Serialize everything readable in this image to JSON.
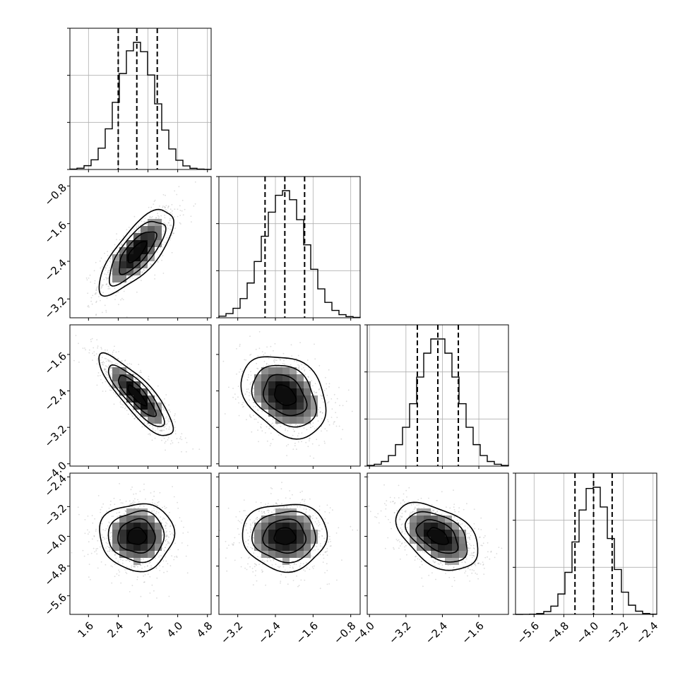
{
  "chart_data": {
    "type": "corner",
    "n_params": 4,
    "grid": true,
    "quantiles": [
      0.16,
      0.5,
      0.84
    ],
    "colors": {
      "hist": "#000000",
      "contour": "#000000",
      "points": "#9a9a9a",
      "grid": "#b0b0b0",
      "quantile_line": "#000000"
    },
    "parameters": [
      {
        "label": "",
        "range": [
          1.1,
          4.9
        ],
        "mean": 2.9,
        "sd": 0.5,
        "q16": 2.4,
        "q50": 2.9,
        "q84": 3.45,
        "yticks": [],
        "xticks": [
          "1.6",
          "2.4",
          "3.2",
          "4.0",
          "4.8"
        ]
      },
      {
        "label": "",
        "range": [
          -3.6,
          -0.6
        ],
        "mean": -2.2,
        "sd": 0.45,
        "q16": -2.62,
        "q50": -2.2,
        "q84": -1.78,
        "yticks": [
          "-0.8",
          "-1.6",
          "-2.4",
          "-3.2"
        ],
        "xticks": [
          "-3.2",
          "-2.4",
          "-1.6",
          "-0.8"
        ]
      },
      {
        "label": "",
        "range": [
          -4.05,
          -0.95
        ],
        "mean": -2.5,
        "sd": 0.45,
        "q16": -2.95,
        "q50": -2.5,
        "q84": -2.05,
        "yticks": [
          "-1.6",
          "-2.4",
          "-3.2",
          "-4.0"
        ],
        "xticks": [
          "-4.0",
          "-3.2",
          "-2.4",
          "-1.6"
        ]
      },
      {
        "label": "",
        "range": [
          -6.1,
          -2.3
        ],
        "mean": -4.0,
        "sd": 0.45,
        "q16": -4.5,
        "q50": -4.0,
        "q84": -3.5,
        "yticks": [
          "-2.4",
          "-3.2",
          "-4.0",
          "-4.8",
          "-5.6"
        ],
        "xticks": [
          "-5.6",
          "-4.8",
          "-4.0",
          "-3.2",
          "-2.4"
        ]
      }
    ],
    "correlations": [
      {
        "i": 0,
        "j": 1,
        "rho": 0.75
      },
      {
        "i": 0,
        "j": 2,
        "rho": -0.85
      },
      {
        "i": 1,
        "j": 2,
        "rho": -0.3
      },
      {
        "i": 0,
        "j": 3,
        "rho": 0.0
      },
      {
        "i": 1,
        "j": 3,
        "rho": 0.0
      },
      {
        "i": 2,
        "j": 3,
        "rho": -0.45
      }
    ]
  }
}
